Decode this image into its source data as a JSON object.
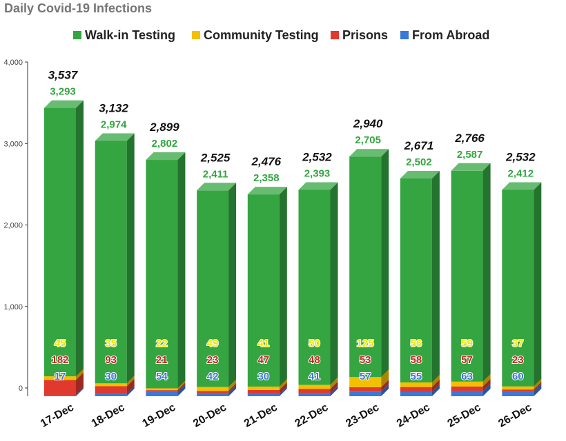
{
  "chart_data": {
    "type": "bar",
    "stacked": true,
    "title": "Daily Covid-19 Infections",
    "categories": [
      "17-Dec",
      "18-Dec",
      "19-Dec",
      "20-Dec",
      "21-Dec",
      "22-Dec",
      "23-Dec",
      "24-Dec",
      "25-Dec",
      "26-Dec"
    ],
    "series": [
      {
        "name": "From Abroad",
        "color": "#3b78d8",
        "values": [
          17,
          30,
          54,
          42,
          30,
          41,
          57,
          55,
          63,
          60
        ]
      },
      {
        "name": "Prisons",
        "color": "#e0392e",
        "values": [
          182,
          93,
          21,
          23,
          47,
          48,
          53,
          58,
          57,
          23
        ]
      },
      {
        "name": "Community Testing",
        "color": "#f2c000",
        "values": [
          45,
          35,
          22,
          49,
          41,
          50,
          125,
          56,
          59,
          37
        ]
      },
      {
        "name": "Walk-in Testing",
        "color": "#34a541",
        "values": [
          3293,
          2974,
          2802,
          2411,
          2358,
          2393,
          2705,
          2502,
          2587,
          2412
        ]
      }
    ],
    "legend_order": [
      "Walk-in Testing",
      "Community Testing",
      "Prisons",
      "From Abroad"
    ],
    "totals": [
      "3,537",
      "3,132",
      "2,899",
      "2,525",
      "2,476",
      "2,532",
      "2,940",
      "2,671",
      "2,766",
      "2,532"
    ],
    "y_ticks": [
      "0",
      "1,000",
      "2,000",
      "3,000",
      "4,000"
    ],
    "ylim": [
      0,
      4000
    ],
    "label_colors": {
      "Walk-in Testing": "#34a541",
      "Community Testing": "#f2e600",
      "Prisons": "#c0271f",
      "From Abroad": "#3b78d8"
    },
    "grid": false,
    "legend_position": "top"
  }
}
